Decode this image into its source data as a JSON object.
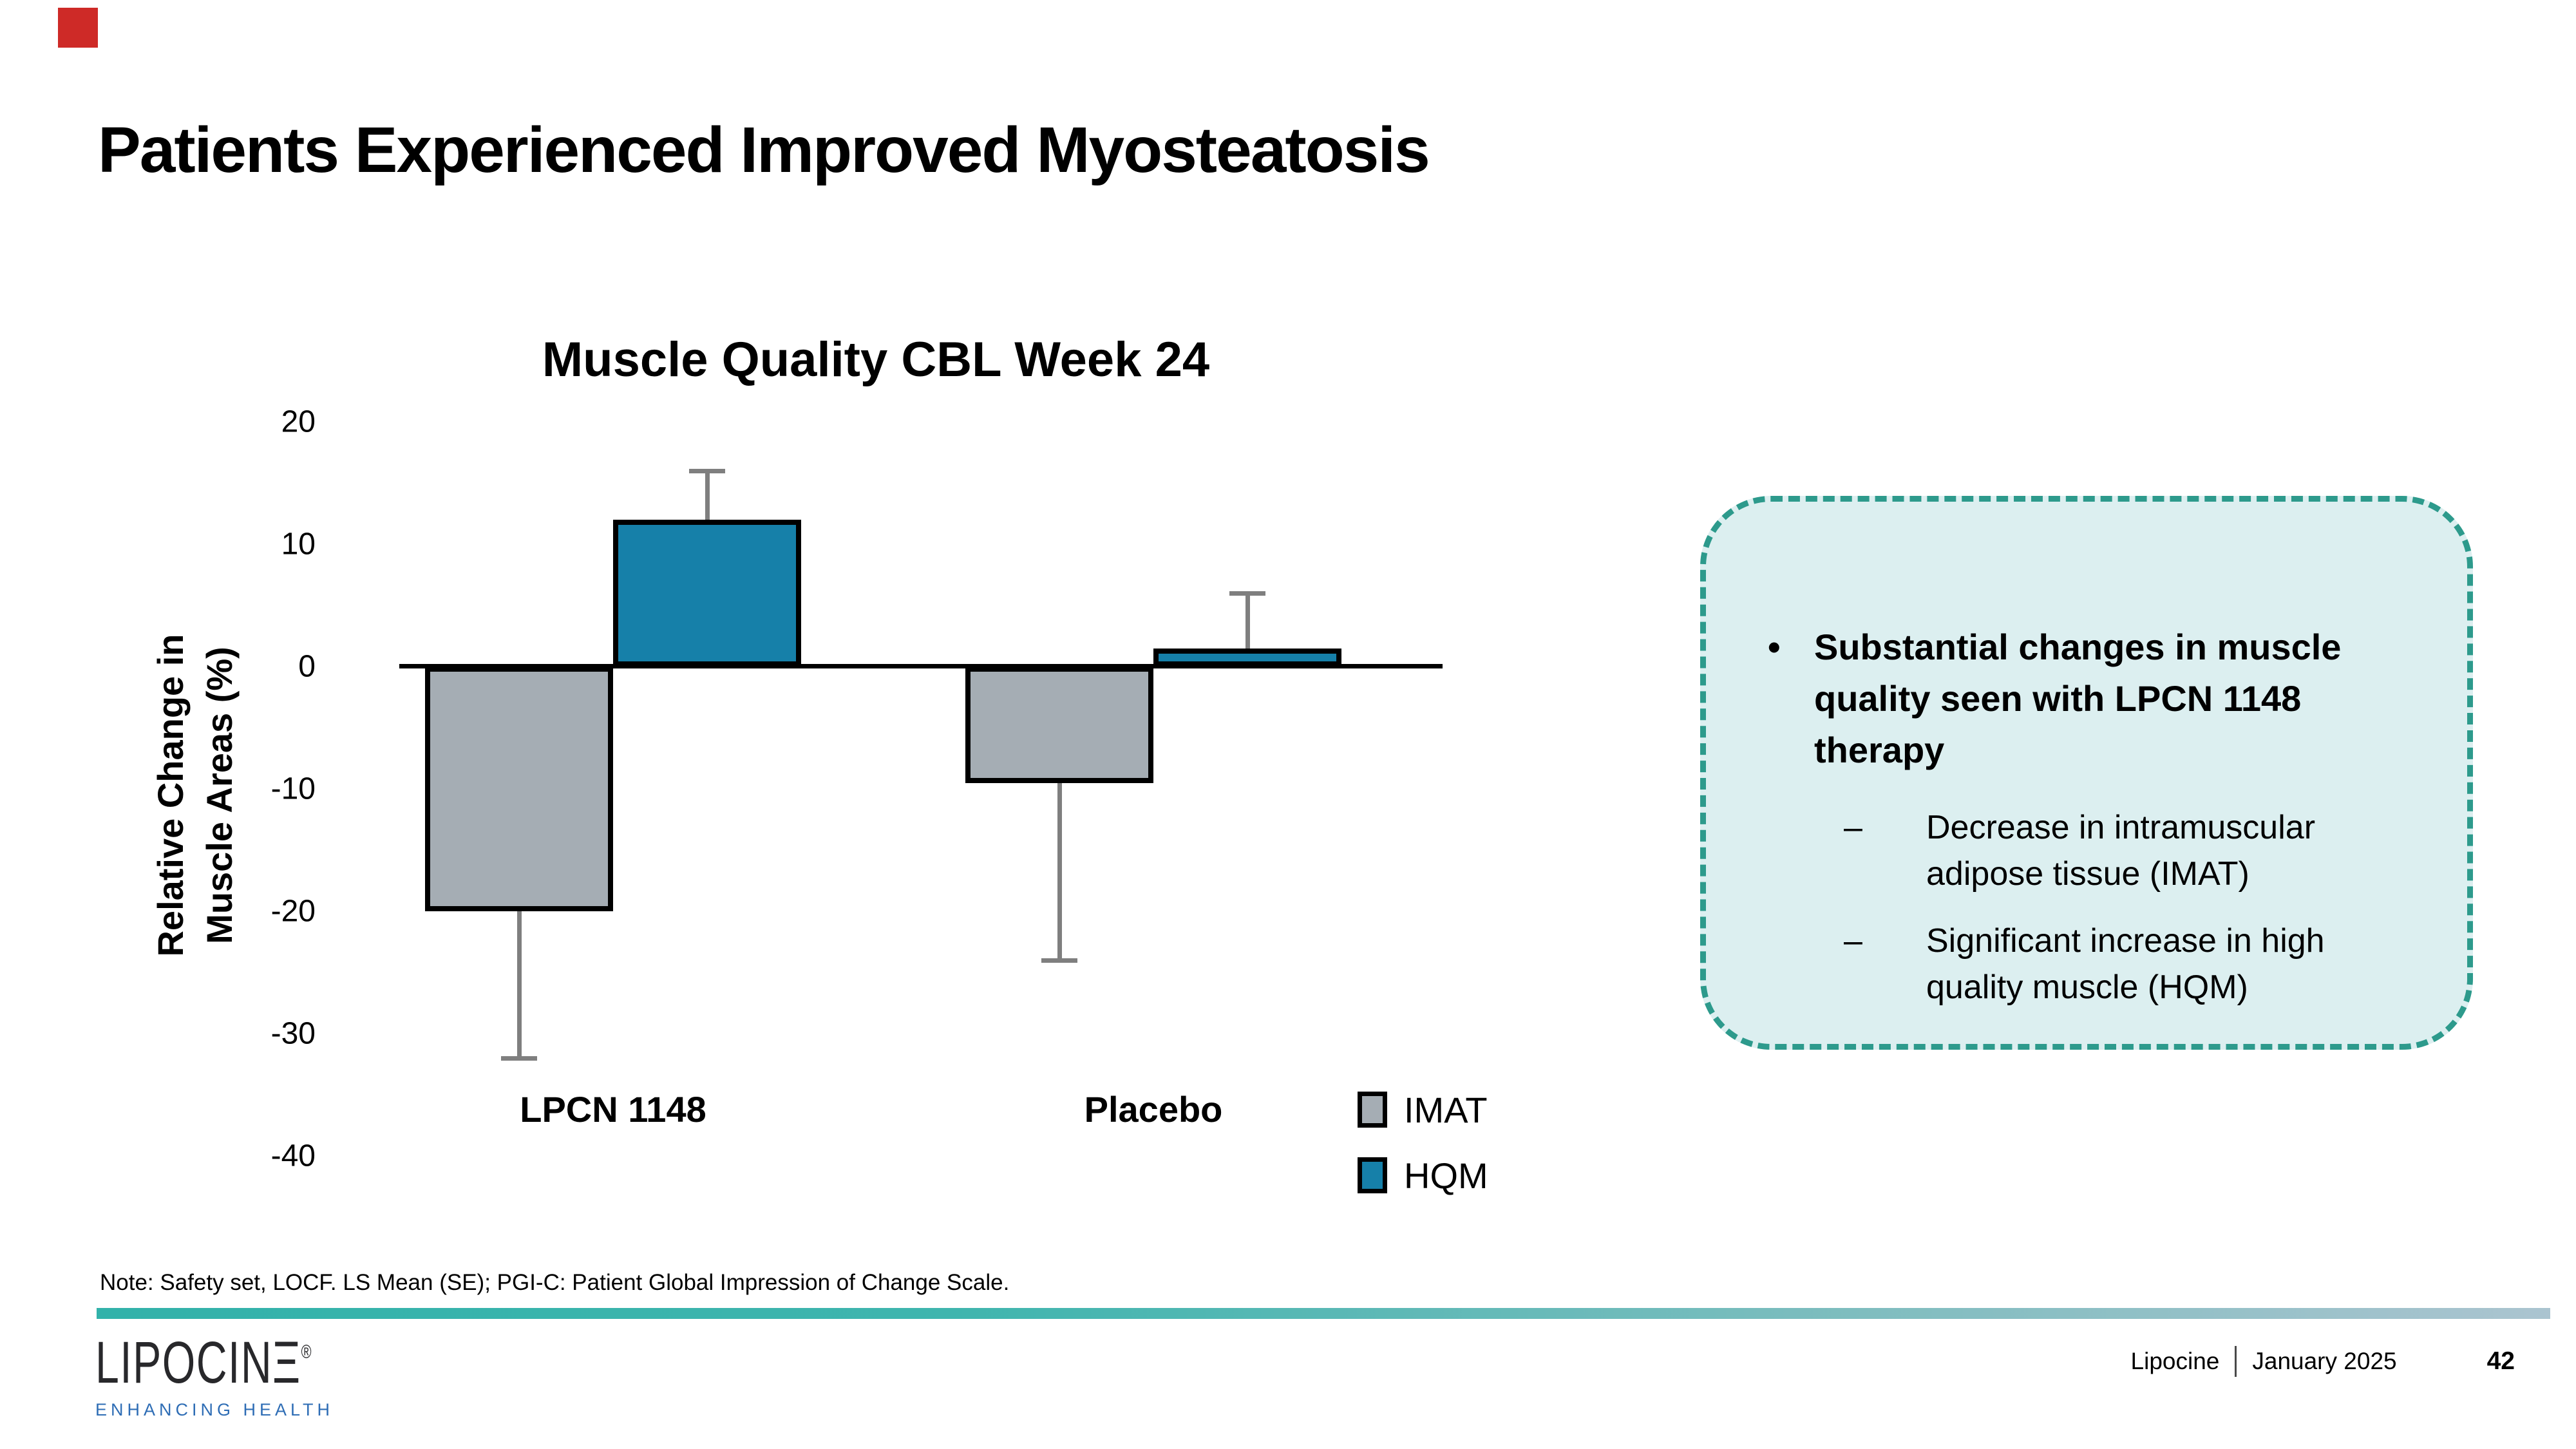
{
  "slide": {
    "title": "Patients Experienced Improved Myosteatosis",
    "note": "Note: Safety set, LOCF. LS Mean (SE); PGI-C: Patient Global Impression of Change Scale.",
    "accent_color": "#CE2A27"
  },
  "chart_data": {
    "type": "bar",
    "title": "Muscle Quality CBL Week 24",
    "ylabel_lines": [
      "Relative Change in",
      "Muscle Areas (%)"
    ],
    "categories": [
      "LPCN 1148",
      "Placebo"
    ],
    "series": [
      {
        "name": "IMAT",
        "color": "#A5ADB4",
        "values": [
          -20,
          -9.5
        ],
        "error_to": [
          -32,
          -24
        ]
      },
      {
        "name": "HQM",
        "color": "#1680A9",
        "values": [
          12,
          1.5
        ],
        "error_to": [
          16,
          6
        ]
      }
    ],
    "yticks": [
      20,
      10,
      0,
      -10,
      -20,
      -30,
      -40
    ],
    "ylim": [
      -40,
      20
    ],
    "grid": false,
    "legend_position": "bottom-right",
    "error_bar_color": "#7F7F7F"
  },
  "callout": {
    "bullet": "Substantial changes in muscle quality seen with LPCN 1148 therapy",
    "sub_bullets": [
      "Decrease in intramuscular adipose tissue (IMAT)",
      "Significant increase in high quality muscle (HQM)"
    ],
    "fill": "#DCEFF0",
    "border": "#2D9A8C"
  },
  "logo": {
    "main": "LIPOCIN",
    "last_letter": "Ξ",
    "registered": "®",
    "tagline": "ENHANCING HEALTH"
  },
  "footer": {
    "company": "Lipocine",
    "date": "January 2025",
    "page": "42"
  }
}
